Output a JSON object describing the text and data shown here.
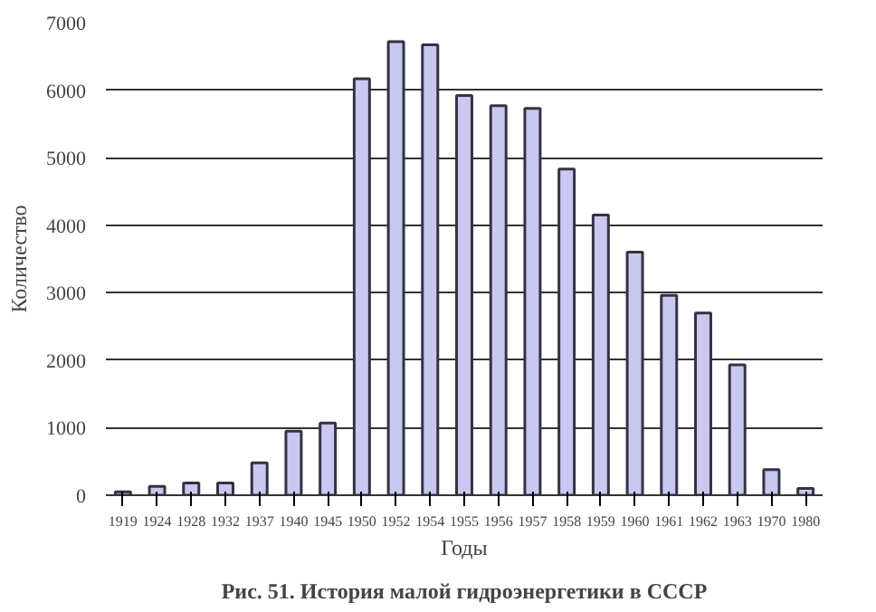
{
  "chart_data": {
    "type": "bar",
    "xlabel": "Годы",
    "ylabel": "Количество",
    "categories": [
      "1919",
      "1924",
      "1928",
      "1932",
      "1937",
      "1940",
      "1945",
      "1950",
      "1952",
      "1954",
      "1955",
      "1956",
      "1957",
      "1958",
      "1959",
      "1960",
      "1961",
      "1962",
      "1963",
      "1970",
      "1980"
    ],
    "values": [
      50,
      130,
      180,
      180,
      480,
      950,
      1070,
      6170,
      6720,
      6670,
      5920,
      5770,
      5730,
      4830,
      4150,
      3600,
      2960,
      2700,
      1930,
      380,
      100
    ],
    "color": "#c8c8f0",
    "ylim": [
      0,
      7000
    ],
    "yticks": [
      0,
      1000,
      2000,
      3000,
      4000,
      5000,
      6000,
      7000
    ],
    "grid": "y",
    "annotations": [
      "Рис. 51. История малой гидроэнергетики в СССР"
    ]
  }
}
